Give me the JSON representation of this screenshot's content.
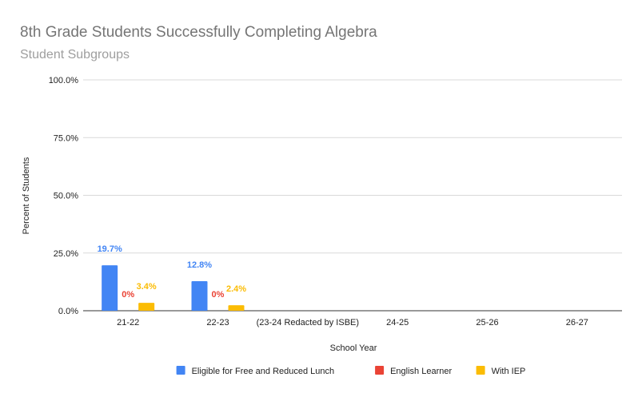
{
  "chart_data": {
    "type": "bar",
    "title": "8th Grade Students Successfully Completing Algebra",
    "subtitle": "Student Subgroups",
    "xlabel": "School Year",
    "ylabel": "Percent of Students",
    "categories": [
      "21-22",
      "22-23",
      "(23-24 Redacted by ISBE)",
      "24-25",
      "25-26",
      "26-27"
    ],
    "ylim": [
      0,
      100
    ],
    "yticks": [
      0,
      25,
      50,
      75,
      100
    ],
    "ytick_labels": [
      "0.0%",
      "25.0%",
      "50.0%",
      "75.0%",
      "100.0%"
    ],
    "grid": true,
    "legend_position": "bottom",
    "series": [
      {
        "name": "Eligible for Free and Reduced Lunch",
        "color": "#4285F4",
        "values": [
          19.7,
          12.8,
          null,
          null,
          null,
          null
        ],
        "labels": [
          "19.7%",
          "12.8%",
          null,
          null,
          null,
          null
        ]
      },
      {
        "name": "English Learner",
        "color": "#EA4335",
        "values": [
          0,
          0,
          null,
          null,
          null,
          null
        ],
        "labels": [
          "0%",
          "0%",
          null,
          null,
          null,
          null
        ]
      },
      {
        "name": "With IEP",
        "color": "#FBBC04",
        "values": [
          3.4,
          2.4,
          null,
          null,
          null,
          null
        ],
        "labels": [
          "3.4%",
          "2.4%",
          null,
          null,
          null,
          null
        ]
      }
    ]
  }
}
